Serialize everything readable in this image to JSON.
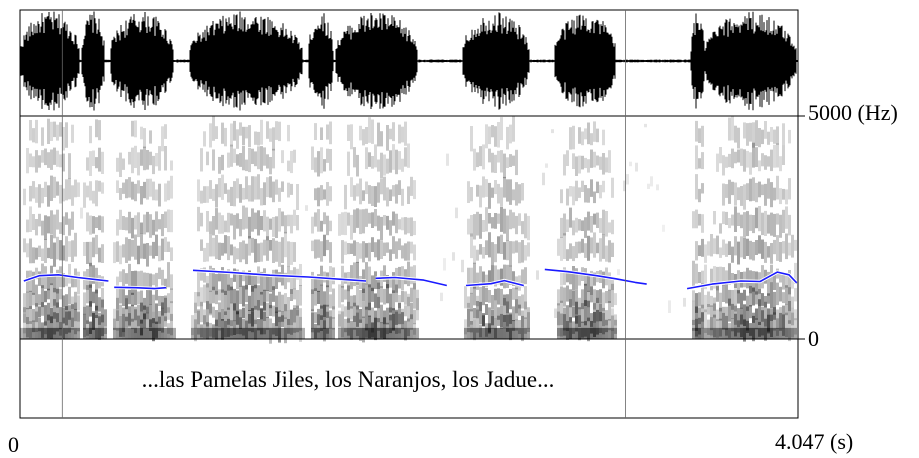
{
  "figure": {
    "freq_top_label": "5000 (Hz)",
    "freq_bottom_label": "0",
    "time_start_label": "0",
    "time_end_label": "4.047 (s)",
    "transcript": "...las Pamelas Jiles, los Naranjos, los Jadue...",
    "duration_s": 4.047,
    "freq_max_hz": 5000,
    "interval_boundaries_s": [
      0.22,
      3.15
    ]
  },
  "colors": {
    "waveform": "#000000",
    "pitch_contour": "#1a1aff",
    "frame": "#000000",
    "background": "#ffffff"
  },
  "pitch_segments_hz": [
    [
      [
        0.02,
        1300
      ],
      [
        0.1,
        1420
      ],
      [
        0.2,
        1440
      ],
      [
        0.3,
        1380
      ],
      [
        0.4,
        1330
      ],
      [
        0.46,
        1300
      ]
    ],
    [
      [
        0.49,
        1160
      ],
      [
        0.6,
        1150
      ],
      [
        0.7,
        1130
      ],
      [
        0.76,
        1150
      ]
    ],
    [
      [
        0.9,
        1540
      ],
      [
        1.1,
        1490
      ],
      [
        1.3,
        1430
      ],
      [
        1.5,
        1390
      ],
      [
        1.7,
        1330
      ],
      [
        1.8,
        1300
      ]
    ],
    [
      [
        1.85,
        1360
      ],
      [
        1.95,
        1380
      ],
      [
        2.1,
        1320
      ],
      [
        2.22,
        1200
      ]
    ],
    [
      [
        2.32,
        1200
      ],
      [
        2.45,
        1240
      ],
      [
        2.52,
        1310
      ],
      [
        2.62,
        1200
      ]
    ],
    [
      [
        2.73,
        1560
      ],
      [
        2.85,
        1510
      ],
      [
        3.0,
        1420
      ],
      [
        3.1,
        1350
      ],
      [
        3.2,
        1270
      ],
      [
        3.26,
        1230
      ]
    ],
    [
      [
        3.47,
        1130
      ],
      [
        3.6,
        1230
      ],
      [
        3.75,
        1300
      ],
      [
        3.85,
        1290
      ],
      [
        3.94,
        1500
      ],
      [
        4.0,
        1440
      ],
      [
        4.04,
        1260
      ]
    ]
  ],
  "energy_segments_s": [
    [
      0.0,
      0.31
    ],
    [
      0.32,
      0.44
    ],
    [
      0.47,
      0.8
    ],
    [
      0.88,
      1.47
    ],
    [
      1.5,
      1.63
    ],
    [
      1.64,
      2.07
    ],
    [
      2.3,
      2.65
    ],
    [
      2.78,
      3.1
    ],
    [
      3.49,
      3.56
    ],
    [
      3.56,
      4.04
    ]
  ]
}
